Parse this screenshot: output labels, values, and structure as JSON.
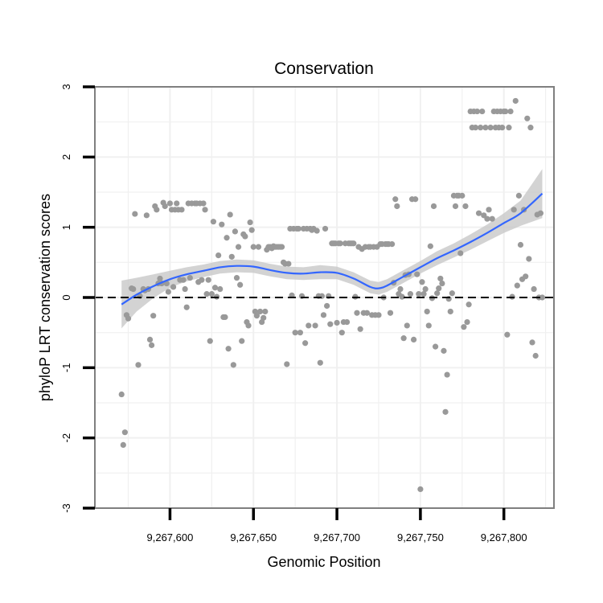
{
  "chart_data": {
    "type": "scatter",
    "title": "Conservation",
    "xlabel": "Genomic Position",
    "ylabel": "phyloP LRT conservation scores",
    "xlim": [
      9267555,
      9267830
    ],
    "ylim": [
      -3,
      3
    ],
    "x_ticks": [
      9267600,
      9267650,
      9267700,
      9267750,
      9267800
    ],
    "x_tick_labels": [
      "9,267,600",
      "9,267,650",
      "9,267,700",
      "9,267,750",
      "9,267,800"
    ],
    "y_ticks": [
      -3,
      -2,
      -1,
      0,
      1,
      2,
      3
    ],
    "y_tick_labels": [
      "-3",
      "-2",
      "-1",
      "0",
      "1",
      "2",
      "3"
    ],
    "reference_line": {
      "y": 0,
      "style": "dashed"
    },
    "colors": {
      "points": "#999999",
      "smooth_line": "#3366FF",
      "confidence_band": "#C8C8C8",
      "grid": "#F0F0F0",
      "panel_border": "#7F7F7F"
    },
    "points": [
      [
        9267571,
        -1.38
      ],
      [
        9267572,
        -2.1
      ],
      [
        9267573,
        -1.92
      ],
      [
        9267574,
        -0.25
      ],
      [
        9267575,
        -0.3
      ],
      [
        9267577,
        0.13
      ],
      [
        9267578,
        0.12
      ],
      [
        9267579,
        1.19
      ],
      [
        9267581,
        -0.96
      ],
      [
        9267582,
        0.02
      ],
      [
        9267584,
        0.12
      ],
      [
        9267585,
        0.1
      ],
      [
        9267586,
        1.17
      ],
      [
        9267587,
        0.12
      ],
      [
        9267588,
        -0.6
      ],
      [
        9267589,
        -0.68
      ],
      [
        9267590,
        -0.26
      ],
      [
        9267591,
        1.3
      ],
      [
        9267592,
        1.25
      ],
      [
        9267593,
        0.2
      ],
      [
        9267594,
        0.27
      ],
      [
        9267595,
        0.2
      ],
      [
        9267596,
        1.35
      ],
      [
        9267597,
        1.3
      ],
      [
        9267598,
        0.2
      ],
      [
        9267599,
        0.08
      ],
      [
        9267600,
        1.34
      ],
      [
        9267601,
        1.25
      ],
      [
        9267602,
        0.15
      ],
      [
        9267603,
        1.25
      ],
      [
        9267604,
        1.34
      ],
      [
        9267605,
        1.25
      ],
      [
        9267606,
        0.25
      ],
      [
        9267607,
        1.25
      ],
      [
        9267608,
        0.25
      ],
      [
        9267609,
        0.12
      ],
      [
        9267610,
        -0.14
      ],
      [
        9267611,
        1.34
      ],
      [
        9267612,
        0.28
      ],
      [
        9267613,
        1.34
      ],
      [
        9267615,
        1.34
      ],
      [
        9267616,
        1.34
      ],
      [
        9267617,
        0.22
      ],
      [
        9267618,
        1.34
      ],
      [
        9267619,
        0.25
      ],
      [
        9267620,
        1.34
      ],
      [
        9267621,
        1.25
      ],
      [
        9267622,
        0.05
      ],
      [
        9267623,
        0.25
      ],
      [
        9267624,
        -0.62
      ],
      [
        9267625,
        0.05
      ],
      [
        9267626,
        1.08
      ],
      [
        9267627,
        0.14
      ],
      [
        9267628,
        0.01
      ],
      [
        9267629,
        0.6
      ],
      [
        9267630,
        0.12
      ],
      [
        9267631,
        1.04
      ],
      [
        9267632,
        -0.28
      ],
      [
        9267633,
        -0.28
      ],
      [
        9267634,
        0.85
      ],
      [
        9267635,
        -0.73
      ],
      [
        9267636,
        1.18
      ],
      [
        9267637,
        0.58
      ],
      [
        9267638,
        -0.96
      ],
      [
        9267639,
        0.94
      ],
      [
        9267640,
        0.28
      ],
      [
        9267641,
        0.72
      ],
      [
        9267642,
        0.18
      ],
      [
        9267643,
        -0.62
      ],
      [
        9267644,
        0.9
      ],
      [
        9267645,
        0.87
      ],
      [
        9267646,
        -0.35
      ],
      [
        9267647,
        -0.4
      ],
      [
        9267648,
        1.07
      ],
      [
        9267649,
        0.96
      ],
      [
        9267650,
        0.72
      ],
      [
        9267651,
        -0.2
      ],
      [
        9267652,
        -0.26
      ],
      [
        9267653,
        0.72
      ],
      [
        9267654,
        -0.2
      ],
      [
        9267655,
        -0.35
      ],
      [
        9267656,
        -0.29
      ],
      [
        9267657,
        -0.2
      ],
      [
        9267658,
        0.68
      ],
      [
        9267659,
        0.72
      ],
      [
        9267660,
        0.72
      ],
      [
        9267661,
        0.7
      ],
      [
        9267662,
        0.73
      ],
      [
        9267663,
        0.72
      ],
      [
        9267664,
        0.72
      ],
      [
        9267665,
        0.72
      ],
      [
        9267666,
        0.72
      ],
      [
        9267667,
        0.72
      ],
      [
        9267668,
        0.5
      ],
      [
        9267669,
        0.48
      ],
      [
        9267670,
        -0.95
      ],
      [
        9267671,
        0.48
      ],
      [
        9267672,
        0.98
      ],
      [
        9267673,
        0.03
      ],
      [
        9267674,
        0.98
      ],
      [
        9267675,
        -0.5
      ],
      [
        9267676,
        0.98
      ],
      [
        9267677,
        0.98
      ],
      [
        9267678,
        -0.5
      ],
      [
        9267679,
        0.02
      ],
      [
        9267680,
        0.98
      ],
      [
        9267681,
        -0.65
      ],
      [
        9267682,
        0.98
      ],
      [
        9267683,
        -0.4
      ],
      [
        9267684,
        0.98
      ],
      [
        9267685,
        0.96
      ],
      [
        9267686,
        0.98
      ],
      [
        9267687,
        -0.4
      ],
      [
        9267688,
        0.95
      ],
      [
        9267689,
        0.02
      ],
      [
        9267690,
        -0.93
      ],
      [
        9267691,
        0.02
      ],
      [
        9267692,
        -0.25
      ],
      [
        9267693,
        0.98
      ],
      [
        9267694,
        -0.12
      ],
      [
        9267695,
        0.02
      ],
      [
        9267696,
        -0.38
      ],
      [
        9267697,
        0.77
      ],
      [
        9267698,
        0.77
      ],
      [
        9267699,
        0.77
      ],
      [
        9267700,
        -0.36
      ],
      [
        9267701,
        0.77
      ],
      [
        9267702,
        0.77
      ],
      [
        9267703,
        -0.5
      ],
      [
        9267704,
        -0.35
      ],
      [
        9267705,
        0.77
      ],
      [
        9267706,
        -0.35
      ],
      [
        9267707,
        0.77
      ],
      [
        9267708,
        0.77
      ],
      [
        9267709,
        0.77
      ],
      [
        9267710,
        0.77
      ],
      [
        9267711,
        0.01
      ],
      [
        9267712,
        -0.22
      ],
      [
        9267713,
        0.72
      ],
      [
        9267714,
        -0.45
      ],
      [
        9267715,
        0.69
      ],
      [
        9267716,
        -0.22
      ],
      [
        9267717,
        0.72
      ],
      [
        9267718,
        -0.22
      ],
      [
        9267719,
        0.72
      ],
      [
        9267720,
        0.72
      ],
      [
        9267721,
        -0.25
      ],
      [
        9267722,
        0.72
      ],
      [
        9267723,
        -0.25
      ],
      [
        9267724,
        0.72
      ],
      [
        9267725,
        -0.25
      ],
      [
        9267726,
        0.76
      ],
      [
        9267727,
        0.76
      ],
      [
        9267728,
        0.0
      ],
      [
        9267729,
        0.76
      ],
      [
        9267730,
        0.76
      ],
      [
        9267731,
        0.76
      ],
      [
        9267732,
        -0.22
      ],
      [
        9267733,
        0.76
      ],
      [
        9267734,
        0.21
      ],
      [
        9267735,
        1.4
      ],
      [
        9267736,
        1.3
      ],
      [
        9267737,
        0.05
      ],
      [
        9267738,
        0.12
      ],
      [
        9267739,
        0.01
      ],
      [
        9267740,
        -0.58
      ],
      [
        9267741,
        0.32
      ],
      [
        9267742,
        -0.4
      ],
      [
        9267743,
        0.33
      ],
      [
        9267744,
        0.05
      ],
      [
        9267745,
        1.4
      ],
      [
        9267746,
        -0.6
      ],
      [
        9267747,
        1.4
      ],
      [
        9267748,
        0.33
      ],
      [
        9267749,
        0.05
      ],
      [
        9267750,
        -2.73
      ],
      [
        9267751,
        0.22
      ],
      [
        9267752,
        0.05
      ],
      [
        9267753,
        0.12
      ],
      [
        9267754,
        -0.2
      ],
      [
        9267755,
        -0.4
      ],
      [
        9267756,
        0.73
      ],
      [
        9267757,
        -0.01
      ],
      [
        9267758,
        1.3
      ],
      [
        9267759,
        -0.7
      ],
      [
        9267760,
        0.06
      ],
      [
        9267761,
        0.13
      ],
      [
        9267762,
        0.27
      ],
      [
        9267763,
        0.2
      ],
      [
        9267764,
        -0.76
      ],
      [
        9267765,
        -1.63
      ],
      [
        9267766,
        -1.1
      ],
      [
        9267767,
        -0.02
      ],
      [
        9267768,
        -0.2
      ],
      [
        9267769,
        0.06
      ],
      [
        9267770,
        1.45
      ],
      [
        9267771,
        1.3
      ],
      [
        9267772,
        1.45
      ],
      [
        9267773,
        1.45
      ],
      [
        9267774,
        0.63
      ],
      [
        9267775,
        1.45
      ],
      [
        9267776,
        -0.42
      ],
      [
        9267777,
        1.3
      ],
      [
        9267778,
        -0.35
      ],
      [
        9267779,
        -0.1
      ],
      [
        9267780,
        2.65
      ],
      [
        9267781,
        2.42
      ],
      [
        9267782,
        2.65
      ],
      [
        9267783,
        2.42
      ],
      [
        9267784,
        2.65
      ],
      [
        9267785,
        1.2
      ],
      [
        9267786,
        2.42
      ],
      [
        9267787,
        2.65
      ],
      [
        9267788,
        1.17
      ],
      [
        9267789,
        2.42
      ],
      [
        9267790,
        1.12
      ],
      [
        9267791,
        1.25
      ],
      [
        9267792,
        2.42
      ],
      [
        9267793,
        1.12
      ],
      [
        9267794,
        2.65
      ],
      [
        9267795,
        2.42
      ],
      [
        9267796,
        2.65
      ],
      [
        9267797,
        2.42
      ],
      [
        9267798,
        2.65
      ],
      [
        9267799,
        2.42
      ],
      [
        9267800,
        2.65
      ],
      [
        9267801,
        2.65
      ],
      [
        9267802,
        -0.53
      ],
      [
        9267803,
        2.42
      ],
      [
        9267804,
        2.65
      ],
      [
        9267805,
        0.01
      ],
      [
        9267806,
        1.25
      ],
      [
        9267807,
        2.8
      ],
      [
        9267808,
        0.17
      ],
      [
        9267809,
        1.45
      ],
      [
        9267810,
        0.75
      ],
      [
        9267811,
        0.26
      ],
      [
        9267812,
        1.25
      ],
      [
        9267813,
        0.3
      ],
      [
        9267814,
        2.55
      ],
      [
        9267815,
        0.55
      ],
      [
        9267816,
        2.42
      ],
      [
        9267817,
        -0.64
      ],
      [
        9267818,
        0.12
      ],
      [
        9267819,
        -0.83
      ],
      [
        9267820,
        1.18
      ],
      [
        9267821,
        0.0
      ],
      [
        9267822,
        1.2
      ],
      [
        9267823,
        0.0
      ]
    ],
    "smooth": {
      "x": [
        9267571,
        9267580,
        9267590,
        9267600,
        9267610,
        9267620,
        9267630,
        9267640,
        9267650,
        9267660,
        9267670,
        9267680,
        9267690,
        9267700,
        9267710,
        9267720,
        9267725,
        9267730,
        9267740,
        9267750,
        9267760,
        9267770,
        9267780,
        9267790,
        9267800,
        9267810,
        9267823
      ],
      "y": [
        -0.1,
        0.04,
        0.16,
        0.26,
        0.33,
        0.38,
        0.43,
        0.45,
        0.44,
        0.39,
        0.35,
        0.34,
        0.36,
        0.35,
        0.27,
        0.15,
        0.13,
        0.17,
        0.3,
        0.43,
        0.56,
        0.67,
        0.79,
        0.92,
        1.06,
        1.2,
        1.48
      ],
      "se": [
        0.34,
        0.24,
        0.17,
        0.12,
        0.1,
        0.09,
        0.09,
        0.09,
        0.09,
        0.09,
        0.09,
        0.09,
        0.1,
        0.09,
        0.09,
        0.09,
        0.09,
        0.09,
        0.09,
        0.09,
        0.1,
        0.1,
        0.11,
        0.12,
        0.14,
        0.18,
        0.35
      ]
    }
  }
}
